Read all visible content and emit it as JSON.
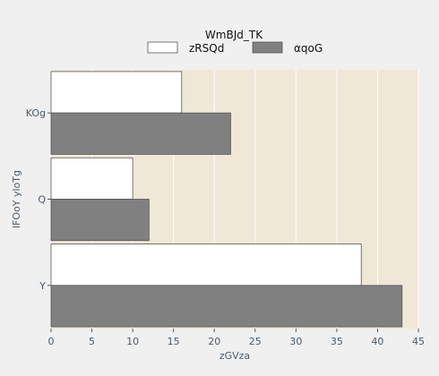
{
  "chart_data": {
    "type": "bar",
    "orientation": "horizontal",
    "categories": [
      "Y",
      "Q",
      "KOg"
    ],
    "series": [
      {
        "name": "zRSQd",
        "values": [
          38,
          10,
          16
        ],
        "color": "#ffffff"
      },
      {
        "name": "αqoG",
        "values": [
          43,
          12,
          22
        ],
        "color": "#808080"
      }
    ],
    "legend_title": "WmBJd_TK",
    "xlabel": "zGVza",
    "ylabel": "lFOoY yloTg",
    "xlim": [
      0,
      45
    ],
    "xticks": [
      0,
      5,
      10,
      15,
      20,
      25,
      30,
      35,
      40,
      45
    ],
    "grid": true,
    "legend_position": "top-center",
    "colors": {
      "page_background": "#f0f0f0",
      "plot_background": "#f0e8d6",
      "grid": "#ffffff",
      "bar_edge": "#555555",
      "text": "#4a5a6a"
    }
  }
}
